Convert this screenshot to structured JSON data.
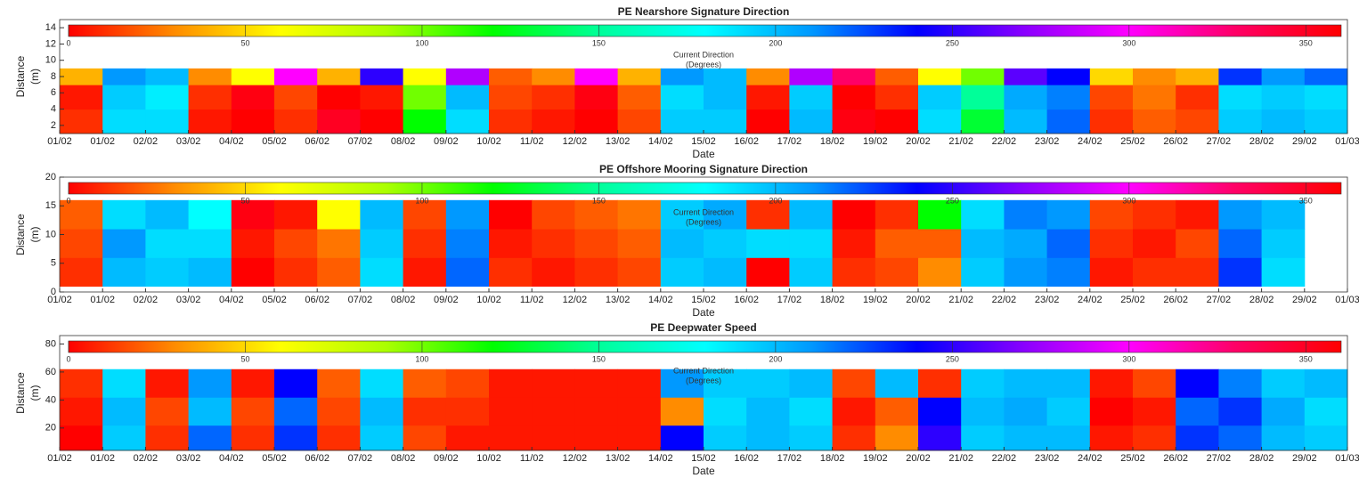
{
  "chart_data": [
    {
      "type": "heatmap",
      "title": "PE Nearshore Signature Direction",
      "x_label": "Date",
      "y_label": [
        "Distance",
        "(m)"
      ],
      "colorbar_label": [
        "Current Direction",
        "(Degrees)"
      ],
      "categories": [
        "01/02",
        "01/02",
        "02/02",
        "03/02",
        "04/02",
        "05/02",
        "06/02",
        "07/02",
        "08/02",
        "09/02",
        "10/02",
        "11/02",
        "12/02",
        "13/02",
        "14/02",
        "15/02",
        "16/02",
        "17/02",
        "18/02",
        "19/02",
        "20/02",
        "21/02",
        "22/02",
        "23/02",
        "24/02",
        "25/02",
        "26/02",
        "27/02",
        "28/02",
        "29/02",
        "01/03"
      ],
      "ylim": [
        1,
        15
      ],
      "yticks": [
        2,
        4,
        6,
        8,
        10,
        12,
        14
      ],
      "y_bins": [
        1,
        4,
        7,
        9
      ],
      "clim": [
        0,
        360
      ],
      "cbar_ticks": [
        0,
        50,
        100,
        150,
        200,
        250,
        300,
        350
      ],
      "colormap": [
        "#ff0000",
        "#ff8c00",
        "#ffff00",
        "#aaff00",
        "#00ff00",
        "#00ff99",
        "#00ffff",
        "#0099ff",
        "#0000ff",
        "#8800ff",
        "#ff00ff",
        "#ff0066",
        "#ff0000"
      ],
      "values": [
        [
          10,
          190,
          190,
          5,
          0,
          10,
          350,
          0,
          120,
          190,
          10,
          5,
          0,
          15,
          195,
          195,
          0,
          200,
          355,
          0,
          190,
          130,
          200,
          220,
          10,
          20,
          15,
          195,
          200,
          195
        ],
        [
          5,
          195,
          185,
          10,
          355,
          15,
          0,
          5,
          100,
          200,
          15,
          10,
          355,
          20,
          190,
          200,
          5,
          195,
          0,
          10,
          195,
          150,
          205,
          215,
          15,
          25,
          10,
          190,
          195,
          190
        ],
        [
          40,
          210,
          200,
          30,
          60,
          300,
          40,
          250,
          60,
          280,
          20,
          30,
          300,
          40,
          210,
          200,
          30,
          280,
          330,
          20,
          60,
          100,
          260,
          240,
          50,
          30,
          40,
          230,
          210,
          220
        ]
      ]
    },
    {
      "type": "heatmap",
      "title": "PE Offshore Mooring Signature Direction",
      "x_label": "Date",
      "y_label": [
        "Distance",
        "(m)"
      ],
      "colorbar_label": [
        "Current Direction",
        "(Degrees)"
      ],
      "categories": [
        "01/02",
        "01/02",
        "02/02",
        "03/02",
        "04/02",
        "05/02",
        "06/02",
        "07/02",
        "08/02",
        "09/02",
        "10/02",
        "11/02",
        "12/02",
        "13/02",
        "14/02",
        "15/02",
        "16/02",
        "17/02",
        "18/02",
        "19/02",
        "20/02",
        "21/02",
        "22/02",
        "23/02",
        "24/02",
        "25/02",
        "26/02",
        "27/02",
        "28/02",
        "29/02",
        "01/03"
      ],
      "ylim": [
        0,
        20
      ],
      "yticks": [
        0,
        5,
        10,
        15,
        20
      ],
      "y_bins": [
        1,
        6,
        11,
        16
      ],
      "clim": [
        0,
        360
      ],
      "cbar_ticks": [
        0,
        50,
        100,
        150,
        200,
        250,
        300,
        350
      ],
      "colormap": [
        "#ff0000",
        "#ff8c00",
        "#ffff00",
        "#aaff00",
        "#00ff00",
        "#00ff99",
        "#00ffff",
        "#0099ff",
        "#0000ff",
        "#8800ff",
        "#ff00ff",
        "#ff0066",
        "#ff0000"
      ],
      "values": [
        [
          10,
          200,
          195,
          200,
          0,
          10,
          20,
          190,
          5,
          220,
          10,
          5,
          10,
          15,
          195,
          200,
          0,
          195,
          10,
          15,
          30,
          195,
          210,
          215,
          5,
          10,
          10,
          230,
          190,
          null
        ],
        [
          15,
          210,
          190,
          190,
          5,
          15,
          25,
          195,
          10,
          215,
          5,
          10,
          15,
          20,
          200,
          195,
          190,
          190,
          5,
          20,
          20,
          200,
          205,
          220,
          10,
          5,
          15,
          220,
          195,
          null
        ],
        [
          20,
          190,
          200,
          180,
          355,
          5,
          60,
          200,
          15,
          210,
          0,
          15,
          20,
          25,
          195,
          205,
          10,
          200,
          0,
          10,
          120,
          190,
          215,
          210,
          15,
          10,
          5,
          210,
          200,
          null
        ]
      ]
    },
    {
      "type": "heatmap",
      "title": "PE Deepwater Speed",
      "x_label": "Date",
      "y_label": [
        "Distance",
        "(m)"
      ],
      "colorbar_label": [
        "Current Direction",
        "(Degrees)"
      ],
      "categories": [
        "01/02",
        "01/02",
        "02/02",
        "03/02",
        "04/02",
        "05/02",
        "06/02",
        "07/02",
        "08/02",
        "09/02",
        "10/02",
        "11/02",
        "12/02",
        "13/02",
        "14/02",
        "15/02",
        "16/02",
        "17/02",
        "18/02",
        "19/02",
        "20/02",
        "21/02",
        "22/02",
        "23/02",
        "24/02",
        "25/02",
        "26/02",
        "27/02",
        "28/02",
        "29/02",
        "01/03"
      ],
      "ylim": [
        4,
        86
      ],
      "yticks": [
        20,
        40,
        60,
        80
      ],
      "y_bins": [
        4,
        22,
        42,
        62
      ],
      "clim": [
        0,
        360
      ],
      "cbar_ticks": [
        0,
        50,
        100,
        150,
        200,
        250,
        300,
        350
      ],
      "colormap": [
        "#ff0000",
        "#ff8c00",
        "#ffff00",
        "#aaff00",
        "#00ff00",
        "#00ff99",
        "#00ffff",
        "#0099ff",
        "#0000ff",
        "#8800ff",
        "#ff00ff",
        "#ff0066",
        "#ff0000"
      ],
      "values": [
        [
          0,
          195,
          10,
          220,
          10,
          230,
          10,
          195,
          15,
          5,
          5,
          5,
          5,
          5,
          240,
          195,
          200,
          195,
          10,
          30,
          250,
          195,
          200,
          200,
          5,
          10,
          230,
          220,
          200,
          195
        ],
        [
          5,
          200,
          15,
          200,
          15,
          220,
          15,
          200,
          10,
          10,
          5,
          5,
          5,
          5,
          30,
          190,
          200,
          190,
          5,
          20,
          240,
          200,
          205,
          195,
          0,
          5,
          220,
          230,
          205,
          190
        ],
        [
          10,
          190,
          5,
          210,
          5,
          240,
          20,
          190,
          20,
          15,
          5,
          5,
          5,
          5,
          210,
          195,
          195,
          200,
          15,
          200,
          10,
          195,
          200,
          200,
          5,
          15,
          240,
          215,
          195,
          200
        ]
      ]
    }
  ]
}
